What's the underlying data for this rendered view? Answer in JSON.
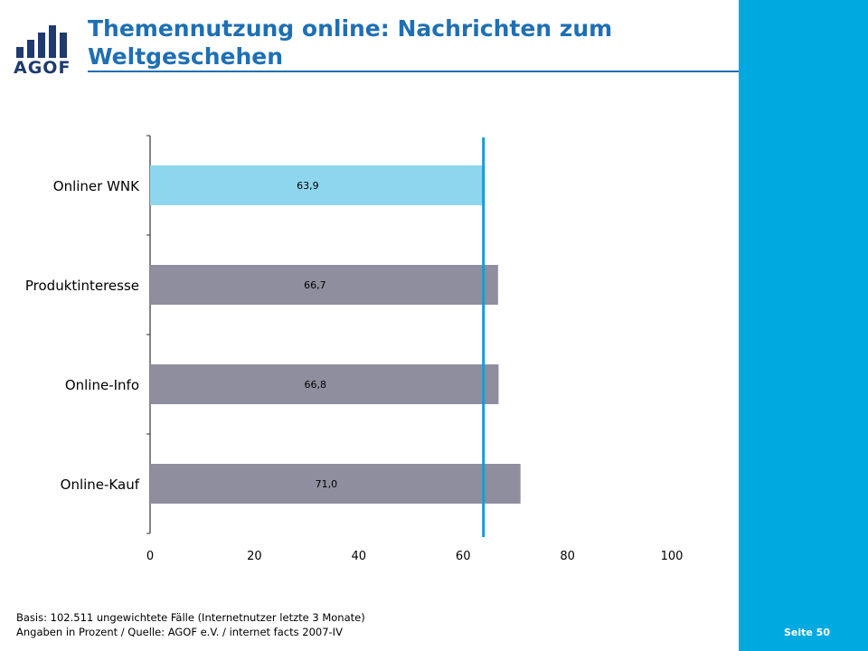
{
  "header": {
    "logo_text": "AGOF",
    "title": "Themennutzung online: Nachrichten zum Weltgeschehen"
  },
  "footnote": {
    "line1": "Basis: 102.511 ungewichtete Fälle (Internetnutzer letzte 3 Monate)",
    "line2": "Angaben in Prozent / Quelle: AGOF e.V. / internet facts 2007-IV"
  },
  "sidebar": {
    "page_label": "Seite 50"
  },
  "colors": {
    "accent": "#00a9e0",
    "title": "#1f6fb4",
    "highlight_bar": "#8ed5ee",
    "bar": "#8f8e9e",
    "reference_line": "#1a9ad6"
  },
  "chart_data": {
    "type": "bar",
    "orientation": "horizontal",
    "categories": [
      "Onliner WNK",
      "Produktinteresse",
      "Online-Info",
      "Online-Kauf"
    ],
    "values": [
      63.9,
      66.7,
      66.8,
      71.0
    ],
    "value_labels": [
      "63,9",
      "66,7",
      "66,8",
      "71,0"
    ],
    "highlight_index": 0,
    "reference_line": 63.9,
    "xlim": [
      0,
      100
    ],
    "xticks": [
      0,
      20,
      40,
      60,
      80,
      100
    ],
    "title": "",
    "xlabel": "",
    "ylabel": "",
    "grid": false,
    "legend": "none"
  }
}
